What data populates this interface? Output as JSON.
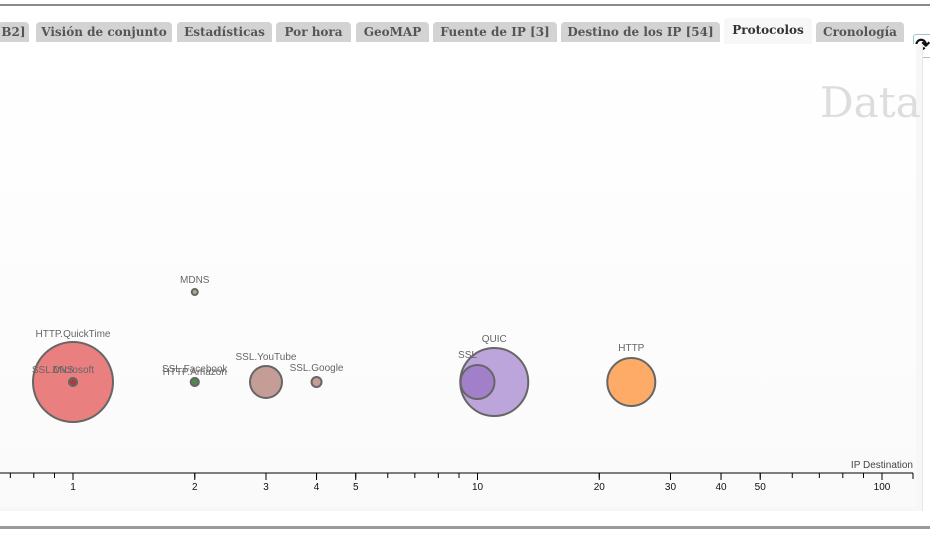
{
  "tabs": [
    {
      "label": "B2]",
      "active": false
    },
    {
      "label": "Visión de conjunto",
      "active": false
    },
    {
      "label": "Estadísticas",
      "active": false
    },
    {
      "label": "Por hora",
      "active": false
    },
    {
      "label": "GeoMAP",
      "active": false
    },
    {
      "label": "Fuente de IP [3]",
      "active": false
    },
    {
      "label": "Destino de los IP [54]",
      "active": false
    },
    {
      "label": "Protocolos",
      "active": true
    },
    {
      "label": "Cronología",
      "active": false
    }
  ],
  "refresh_icon": "refresh-icon",
  "watermark": "Data",
  "chart_data": {
    "type": "scatter",
    "xlabel": "IP Destination",
    "xscale": "log",
    "xlim": [
      0.6,
      120
    ],
    "x_ticks": [
      "1",
      "2",
      "3",
      "4",
      "5",
      "10",
      "20",
      "30",
      "40",
      "50",
      "100"
    ],
    "points": [
      {
        "label": "HTTP.QuickTime",
        "x": 1,
        "size": 40,
        "color": "#e87878"
      },
      {
        "label": "SSL.Microsoft",
        "x": 1,
        "size": 4,
        "color": "#b03a3a"
      },
      {
        "label": "DNS",
        "x": 1,
        "size": 4,
        "color": "#b03a3a"
      },
      {
        "label": "MDNS",
        "x": 2,
        "size": 3,
        "color": "#9aaa8a"
      },
      {
        "label": "SSL.Facebook",
        "x": 2,
        "size": 4,
        "color": "#4f8a4a"
      },
      {
        "label": "HTTP.Amazon",
        "x": 2,
        "size": 4,
        "color": "#4f8a4a"
      },
      {
        "label": "SSL.YouTube",
        "x": 3,
        "size": 16,
        "color": "#c09890"
      },
      {
        "label": "SSL.Google",
        "x": 4,
        "size": 5,
        "color": "#c09890"
      },
      {
        "label": "QUIC",
        "x": 11,
        "size": 34,
        "color": "#b8a0d8"
      },
      {
        "label": "SSL",
        "x": 10,
        "size": 17,
        "color": "#a07cc8"
      },
      {
        "label": "HTTP",
        "x": 24,
        "size": 24,
        "color": "#ffa760"
      }
    ]
  }
}
